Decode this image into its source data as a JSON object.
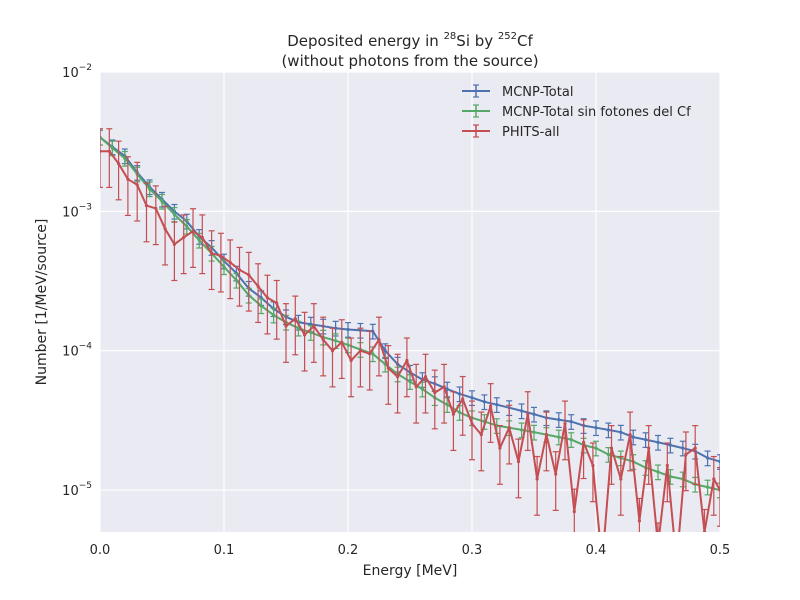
{
  "chart_data": {
    "type": "line",
    "title_line1_prefix": "Deposited energy in ",
    "title_line1_sup1": "28",
    "title_line1_mid": "Si by ",
    "title_line1_sup2": "252",
    "title_line1_suffix": "Cf",
    "title_line2": "(without photons from the source)",
    "xlabel": "Energy [MeV]",
    "ylabel": "Number [1/MeV/source]",
    "xlim": [
      0.0,
      0.5
    ],
    "ylim": [
      5e-06,
      0.01
    ],
    "yscale": "log",
    "grid": true,
    "legend_position": "top-right",
    "x_ticks": [
      {
        "value": 0.0,
        "label": "0.0"
      },
      {
        "value": 0.1,
        "label": "0.1"
      },
      {
        "value": 0.2,
        "label": "0.2"
      },
      {
        "value": 0.3,
        "label": "0.3"
      },
      {
        "value": 0.4,
        "label": "0.4"
      },
      {
        "value": 0.5,
        "label": "0.5"
      }
    ],
    "y_ticks": [
      {
        "value": 1e-05,
        "base": "10",
        "exp": "−5"
      },
      {
        "value": 0.0001,
        "base": "10",
        "exp": "−4"
      },
      {
        "value": 0.001,
        "base": "10",
        "exp": "−3"
      },
      {
        "value": 0.01,
        "base": "10",
        "exp": "−2"
      }
    ],
    "series": [
      {
        "name": "MCNP-Total",
        "color": "#4c72b0",
        "x": [
          0.0,
          0.01,
          0.02,
          0.03,
          0.04,
          0.05,
          0.06,
          0.07,
          0.08,
          0.09,
          0.1,
          0.11,
          0.12,
          0.13,
          0.14,
          0.15,
          0.16,
          0.17,
          0.18,
          0.19,
          0.2,
          0.21,
          0.22,
          0.23,
          0.24,
          0.25,
          0.26,
          0.27,
          0.28,
          0.29,
          0.3,
          0.31,
          0.32,
          0.33,
          0.34,
          0.35,
          0.36,
          0.37,
          0.38,
          0.39,
          0.4,
          0.41,
          0.42,
          0.43,
          0.44,
          0.45,
          0.46,
          0.47,
          0.48,
          0.49,
          0.5
        ],
        "y": [
          0.0034,
          0.0029,
          0.0025,
          0.0019,
          0.0015,
          0.00122,
          0.001,
          0.00085,
          0.00066,
          0.00055,
          0.00044,
          0.00036,
          0.00028,
          0.00024,
          0.0002,
          0.000175,
          0.00016,
          0.000155,
          0.00015,
          0.000145,
          0.000142,
          0.00014,
          0.000138,
          0.0001,
          8e-05,
          7e-05,
          6.2e-05,
          5.8e-05,
          5.3e-05,
          4.9e-05,
          4.6e-05,
          4.3e-05,
          4.1e-05,
          3.9e-05,
          3.7e-05,
          3.5e-05,
          3.3e-05,
          3.2e-05,
          3.1e-05,
          2.9e-05,
          2.8e-05,
          2.7e-05,
          2.6e-05,
          2.4e-05,
          2.3e-05,
          2.2e-05,
          2.1e-05,
          2e-05,
          1.9e-05,
          1.7e-05,
          1.6e-05
        ]
      },
      {
        "name": "MCNP-Total sin fotones del Cf",
        "color": "#55a868",
        "x": [
          0.0,
          0.01,
          0.02,
          0.03,
          0.04,
          0.05,
          0.06,
          0.07,
          0.08,
          0.09,
          0.1,
          0.11,
          0.12,
          0.13,
          0.14,
          0.15,
          0.16,
          0.17,
          0.18,
          0.19,
          0.2,
          0.21,
          0.22,
          0.23,
          0.24,
          0.25,
          0.26,
          0.27,
          0.28,
          0.29,
          0.3,
          0.31,
          0.32,
          0.33,
          0.34,
          0.35,
          0.36,
          0.37,
          0.38,
          0.39,
          0.4,
          0.41,
          0.42,
          0.43,
          0.44,
          0.45,
          0.46,
          0.47,
          0.48,
          0.49,
          0.5
        ],
        "y": [
          0.0034,
          0.00285,
          0.0024,
          0.00185,
          0.00145,
          0.00118,
          0.00095,
          0.00078,
          0.00062,
          0.0005,
          0.0004,
          0.00032,
          0.00025,
          0.00021,
          0.00018,
          0.00016,
          0.000145,
          0.000135,
          0.000125,
          0.000118,
          0.00011,
          0.000102,
          9.5e-05,
          8e-05,
          6.8e-05,
          6e-05,
          5.3e-05,
          4.6e-05,
          4.1e-05,
          3.6e-05,
          3.3e-05,
          3.1e-05,
          2.9e-05,
          2.8e-05,
          2.7e-05,
          2.6e-05,
          2.5e-05,
          2.4e-05,
          2.3e-05,
          2.1e-05,
          2e-05,
          1.8e-05,
          1.7e-05,
          1.6e-05,
          1.45e-05,
          1.35e-05,
          1.25e-05,
          1.2e-05,
          1.1e-05,
          1.05e-05,
          1e-05
        ]
      },
      {
        "name": "PHITS-all",
        "color": "#c44e52",
        "x": [
          0.0,
          0.0075,
          0.015,
          0.0225,
          0.03,
          0.0375,
          0.045,
          0.0525,
          0.06,
          0.0675,
          0.075,
          0.0825,
          0.09,
          0.0975,
          0.105,
          0.1125,
          0.12,
          0.1275,
          0.135,
          0.1425,
          0.15,
          0.1575,
          0.165,
          0.1725,
          0.18,
          0.1875,
          0.195,
          0.2025,
          0.21,
          0.2175,
          0.225,
          0.2325,
          0.24,
          0.2475,
          0.255,
          0.2625,
          0.27,
          0.2775,
          0.285,
          0.2925,
          0.3,
          0.3075,
          0.315,
          0.3225,
          0.33,
          0.3375,
          0.345,
          0.3525,
          0.36,
          0.3675,
          0.375,
          0.3825,
          0.39,
          0.3975,
          0.405,
          0.4125,
          0.42,
          0.4275,
          0.435,
          0.4425,
          0.45,
          0.4575,
          0.465,
          0.4725,
          0.48,
          0.4875,
          0.495,
          0.5
        ],
        "y": [
          0.0027,
          0.0027,
          0.0022,
          0.0017,
          0.00155,
          0.0011,
          0.00105,
          0.00075,
          0.00058,
          0.00065,
          0.00072,
          0.00065,
          0.0005,
          0.00048,
          0.00043,
          0.00038,
          0.00035,
          0.00029,
          0.00024,
          0.00022,
          0.00015,
          0.00017,
          0.00013,
          0.00015,
          0.00012,
          0.0001,
          0.000115,
          8.5e-05,
          0.0001,
          9.5e-05,
          0.00012,
          7.5e-05,
          6.5e-05,
          8.5e-05,
          5.5e-05,
          6.5e-05,
          5e-05,
          5.5e-05,
          3.5e-05,
          4.5e-05,
          3e-05,
          2.5e-05,
          4e-05,
          2e-05,
          2.8e-05,
          1.6e-05,
          3.5e-05,
          1.2e-05,
          2.5e-05,
          1.3e-05,
          3e-05,
          7e-06,
          2.2e-05,
          1.5e-05,
          3e-06,
          2e-05,
          1.2e-05,
          2.5e-05,
          6e-06,
          2e-05,
          4e-06,
          1.5e-05,
          3e-06,
          1.8e-05,
          2e-05,
          5e-06,
          1.2e-05,
          1e-05
        ]
      }
    ]
  }
}
